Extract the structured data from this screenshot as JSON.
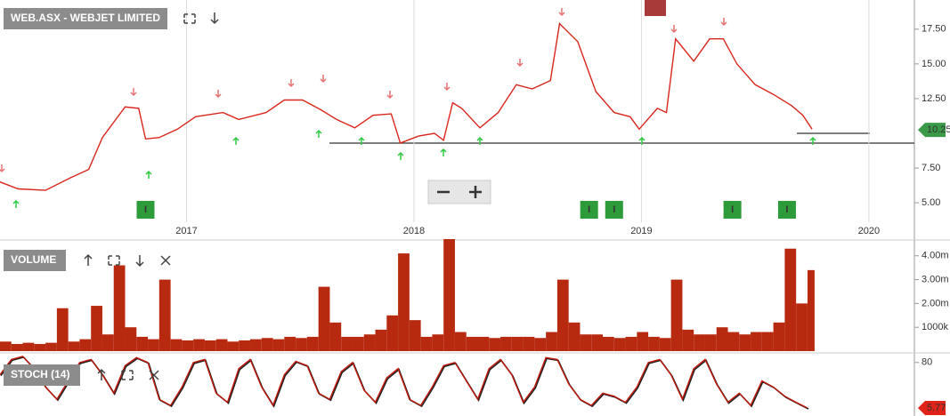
{
  "chart_data": [
    {
      "type": "line",
      "title": "WEB.ASX - WEBJET LIMITED",
      "x": [
        2016.18,
        2016.26,
        2016.38,
        2016.49,
        2016.57,
        2016.63,
        2016.73,
        2016.79,
        2016.82,
        2016.88,
        2016.96,
        2017.04,
        2017.16,
        2017.23,
        2017.35,
        2017.43,
        2017.51,
        2017.59,
        2017.66,
        2017.74,
        2017.82,
        2017.9,
        2017.94,
        2018.02,
        2018.09,
        2018.13,
        2018.17,
        2018.21,
        2018.29,
        2018.37,
        2018.45,
        2018.52,
        2018.6,
        2018.64,
        2018.72,
        2018.8,
        2018.88,
        2018.95,
        2018.99,
        2019.07,
        2019.11,
        2019.15,
        2019.23,
        2019.3,
        2019.36,
        2019.42,
        2019.5,
        2019.58,
        2019.66,
        2019.71,
        2019.75
      ],
      "values": [
        6.5,
        6.0,
        5.9,
        6.8,
        7.4,
        9.7,
        11.9,
        11.8,
        9.6,
        9.7,
        10.3,
        11.2,
        11.5,
        11.0,
        11.5,
        12.4,
        12.4,
        11.7,
        11.0,
        10.4,
        11.3,
        11.4,
        9.3,
        9.8,
        10.0,
        9.5,
        12.2,
        11.8,
        10.4,
        11.5,
        13.5,
        13.2,
        13.8,
        17.9,
        16.6,
        13.0,
        11.5,
        11.2,
        10.3,
        11.8,
        11.5,
        16.8,
        15.2,
        16.8,
        16.8,
        15.0,
        13.5,
        12.8,
        12.0,
        11.3,
        10.3
      ],
      "color": "#d9261c",
      "xlim": [
        2016.18,
        2020.2
      ],
      "xticks": [
        2017,
        2018,
        2019,
        2020
      ],
      "ylim": [
        3.6,
        19.6
      ],
      "yticks": [
        {
          "value": 5,
          "label": "5.00"
        },
        {
          "value": 7.5,
          "label": "7.50"
        },
        {
          "value": 12.5,
          "label": "12.50"
        },
        {
          "value": 15,
          "label": "15.00"
        },
        {
          "value": 17.5,
          "label": "17.50"
        }
      ],
      "last_value": 10.25,
      "markers": [
        {
          "x": 2016.82,
          "label": "I"
        },
        {
          "x": 2018.77,
          "label": "I"
        },
        {
          "x": 2018.88,
          "label": "I"
        },
        {
          "x": 2019.4,
          "label": "I"
        },
        {
          "x": 2019.64,
          "label": "I"
        }
      ]
    },
    {
      "type": "bar",
      "title": "VOLUME",
      "x": [
        2016.18,
        2016.23,
        2016.28,
        2016.33,
        2016.38,
        2016.43,
        2016.48,
        2016.53,
        2016.58,
        2016.63,
        2016.68,
        2016.73,
        2016.78,
        2016.83,
        2016.88,
        2016.93,
        2016.98,
        2017.03,
        2017.08,
        2017.13,
        2017.18,
        2017.23,
        2017.28,
        2017.33,
        2017.38,
        2017.43,
        2017.48,
        2017.53,
        2017.58,
        2017.63,
        2017.68,
        2017.73,
        2017.78,
        2017.83,
        2017.88,
        2017.93,
        2017.98,
        2018.03,
        2018.08,
        2018.13,
        2018.18,
        2018.23,
        2018.28,
        2018.33,
        2018.38,
        2018.43,
        2018.48,
        2018.53,
        2018.58,
        2018.63,
        2018.68,
        2018.73,
        2018.78,
        2018.83,
        2018.88,
        2018.93,
        2018.98,
        2019.03,
        2019.08,
        2019.13,
        2019.18,
        2019.23,
        2019.28,
        2019.33,
        2019.38,
        2019.43,
        2019.48,
        2019.53,
        2019.58,
        2019.63,
        2019.68,
        2019.73
      ],
      "values": [
        400000,
        300000,
        350000,
        300000,
        350000,
        1800000,
        400000,
        500000,
        1900000,
        700000,
        3600000,
        1000000,
        600000,
        500000,
        3000000,
        500000,
        450000,
        500000,
        450000,
        500000,
        400000,
        450000,
        500000,
        550000,
        500000,
        600000,
        550000,
        600000,
        2700000,
        1200000,
        600000,
        600000,
        700000,
        900000,
        1500000,
        4100000,
        1300000,
        600000,
        700000,
        4700000,
        800000,
        600000,
        600000,
        550000,
        600000,
        600000,
        600000,
        550000,
        800000,
        3000000,
        1200000,
        700000,
        700000,
        600000,
        550000,
        600000,
        800000,
        600000,
        550000,
        3000000,
        900000,
        700000,
        700000,
        1000000,
        800000,
        700000,
        800000,
        800000,
        1200000,
        4300000,
        2000000,
        3400000
      ],
      "color": "#b82a10",
      "xlim": [
        2016.18,
        2020.2
      ],
      "ylim": [
        0,
        4700000
      ],
      "yticks": [
        {
          "value": 1000000,
          "label": "1000k"
        },
        {
          "value": 2000000,
          "label": "2.00m"
        },
        {
          "value": 3000000,
          "label": "3.00m"
        },
        {
          "value": 4000000,
          "label": "4.00m"
        }
      ]
    },
    {
      "type": "line",
      "title": "STOCH (14)",
      "x": [
        2016.18,
        2016.23,
        2016.28,
        2016.33,
        2016.38,
        2016.43,
        2016.48,
        2016.53,
        2016.58,
        2016.63,
        2016.68,
        2016.73,
        2016.78,
        2016.83,
        2016.88,
        2016.93,
        2016.98,
        2017.03,
        2017.08,
        2017.13,
        2017.18,
        2017.23,
        2017.28,
        2017.33,
        2017.38,
        2017.43,
        2017.48,
        2017.53,
        2017.58,
        2017.63,
        2017.68,
        2017.73,
        2017.78,
        2017.83,
        2017.88,
        2017.93,
        2017.98,
        2018.03,
        2018.08,
        2018.13,
        2018.18,
        2018.23,
        2018.28,
        2018.33,
        2018.38,
        2018.43,
        2018.48,
        2018.53,
        2018.58,
        2018.63,
        2018.68,
        2018.73,
        2018.78,
        2018.83,
        2018.88,
        2018.93,
        2018.98,
        2019.03,
        2019.08,
        2019.13,
        2019.18,
        2019.23,
        2019.28,
        2019.33,
        2019.38,
        2019.43,
        2019.48,
        2019.53,
        2019.58,
        2019.63,
        2019.68,
        2019.73
      ],
      "values": [
        60,
        85,
        90,
        70,
        40,
        20,
        50,
        80,
        85,
        60,
        30,
        75,
        88,
        80,
        20,
        10,
        40,
        80,
        85,
        30,
        15,
        70,
        85,
        40,
        10,
        60,
        82,
        75,
        30,
        20,
        65,
        80,
        35,
        15,
        55,
        70,
        20,
        10,
        40,
        75,
        80,
        50,
        20,
        70,
        85,
        60,
        15,
        40,
        88,
        85,
        45,
        20,
        10,
        30,
        25,
        15,
        40,
        80,
        85,
        60,
        20,
        70,
        85,
        45,
        15,
        30,
        10,
        50,
        40,
        25,
        15,
        5.77
      ],
      "color": "#c0180c",
      "xlim": [
        2016.18,
        2020.2
      ],
      "ylim": [
        0,
        100
      ],
      "yticks": [
        80
      ],
      "last_value": 5.77
    }
  ]
}
